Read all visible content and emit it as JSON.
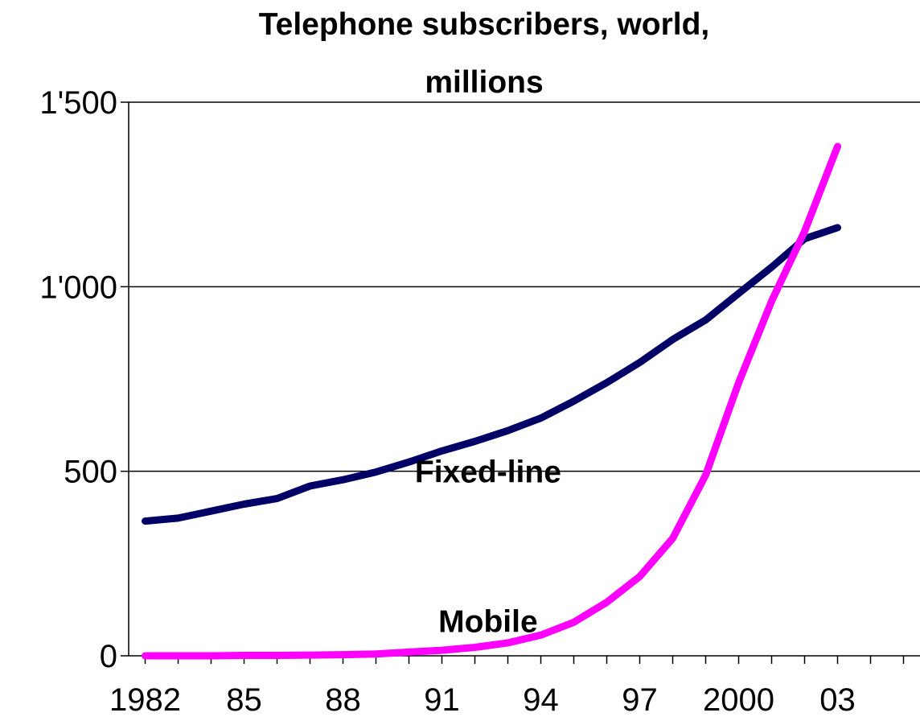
{
  "chart_data": {
    "type": "line",
    "title": [
      "Telephone subscribers, world,",
      "millions"
    ],
    "xlabel": "",
    "ylabel": "",
    "x": [
      1982,
      1983,
      1984,
      1985,
      1986,
      1987,
      1988,
      1989,
      1990,
      1991,
      1992,
      1993,
      1994,
      1995,
      1996,
      1997,
      1998,
      1999,
      2000,
      2001,
      2002,
      2003
    ],
    "xlim": [
      1981.5,
      2005.5
    ],
    "ylim": [
      0,
      1500
    ],
    "x_ticks": [
      1982,
      1985,
      1988,
      1991,
      1994,
      1997,
      2000,
      2003
    ],
    "x_tick_labels": [
      "1982",
      "85",
      "88",
      "91",
      "94",
      "97",
      "2000",
      "03"
    ],
    "y_ticks": [
      0,
      500,
      1000,
      1500
    ],
    "y_tick_labels": [
      "0",
      "500",
      "1'000",
      "1'500"
    ],
    "grid": "horizontal",
    "legend": "none",
    "series": [
      {
        "name": "Fixed-line",
        "color": "#000066",
        "values": [
          365,
          373,
          392,
          411,
          426,
          460,
          477,
          498,
          525,
          555,
          581,
          610,
          644,
          690,
          740,
          795,
          857,
          910,
          982,
          1053,
          1130,
          1160
        ]
      },
      {
        "name": "Mobile",
        "color": "#ff00ff",
        "values": [
          0,
          0,
          0,
          1,
          1,
          2,
          3,
          5,
          10,
          15,
          23,
          35,
          56,
          91,
          145,
          215,
          318,
          490,
          740,
          961,
          1150,
          1380
        ]
      }
    ],
    "series_labels": [
      {
        "text": "Fixed-line",
        "x": 1992.4,
        "y": 500
      },
      {
        "text": "Mobile",
        "x": 1992.4,
        "y": 95
      }
    ]
  }
}
